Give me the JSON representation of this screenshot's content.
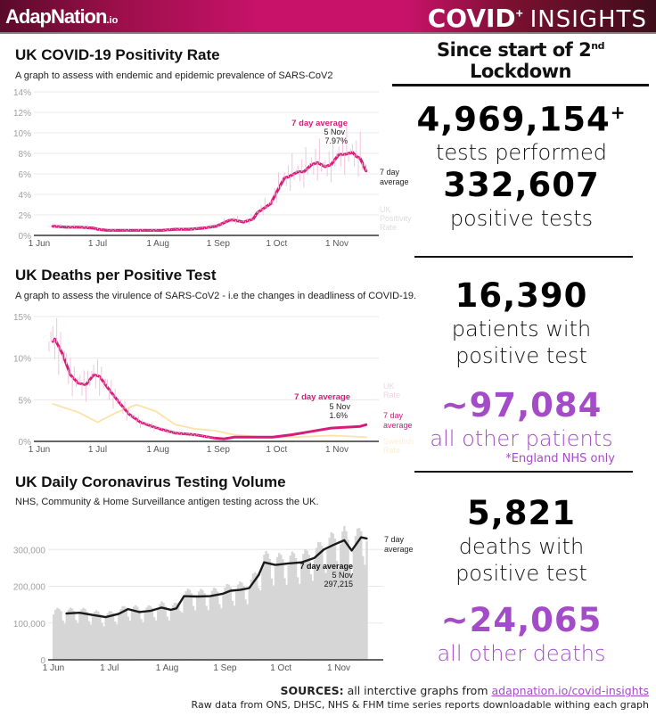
{
  "header": {
    "brand": "AdapNation",
    "brand_suffix": ".io",
    "title_bold": "COVID",
    "title_sup": "+",
    "title_light": "INSIGHTS",
    "colors": {
      "brand_pink": "#c8126a",
      "accent_purple": "#a44cc8",
      "line_pink": "#d81b7a"
    }
  },
  "stats": {
    "heading": "Since start of 2",
    "heading_sup": "nd",
    "heading_tail": " Lockdown",
    "items": [
      {
        "value": "4,969,154",
        "sup": "+",
        "label": "tests performed"
      },
      {
        "value": "332,607",
        "label": "positive tests"
      },
      {
        "value": "16,390",
        "label_line1": "patients with",
        "label_line2": "positive test"
      },
      {
        "value": "~97,084",
        "label": "all other patients",
        "note": "*England NHS only"
      },
      {
        "value": "5,821",
        "label_line1": "deaths with",
        "label_line2": "positive test"
      },
      {
        "value": "~24,065",
        "label": "all other deaths"
      }
    ]
  },
  "sources": {
    "label": "SOURCES:",
    "text": " all interctive graphs from ",
    "link": "adapnation.io/covid-insights",
    "raw": "Raw data from ONS, DHSC, NHS & FHM time series reports downloadable withing each graph"
  },
  "chart_data": [
    {
      "type": "line",
      "title": "UK COVID-19 Positivity Rate",
      "subtitle": "A graph to assess with endemic and epidemic prevalence of SARS-CoV2",
      "xlabel": "",
      "ylabel": "",
      "x_ticks": [
        "1 Jun",
        "1 Jul",
        "1 Aug",
        "1 Sep",
        "1 Oct",
        "1 Nov"
      ],
      "y_ticks": [
        "0%",
        "2%",
        "4%",
        "6%",
        "8%",
        "10%",
        "12%",
        "14%"
      ],
      "ylim": [
        0,
        14
      ],
      "grid": true,
      "x_days_range": [
        0,
        168
      ],
      "series": [
        {
          "name": "7 day average",
          "days": [
            7,
            14,
            21,
            28,
            30,
            35,
            42,
            49,
            56,
            63,
            70,
            77,
            84,
            91,
            98,
            100,
            105,
            110,
            112,
            119,
            122,
            126,
            128,
            133,
            136,
            140,
            143,
            147,
            150,
            154,
            157,
            161,
            163,
            165,
            168
          ],
          "values": [
            0.9,
            0.8,
            0.8,
            0.7,
            0.6,
            0.5,
            0.5,
            0.5,
            0.5,
            0.5,
            0.6,
            0.6,
            0.7,
            0.9,
            1.5,
            1.5,
            1.3,
            1.6,
            2.2,
            3.1,
            4.2,
            5.6,
            5.7,
            6.2,
            6.2,
            6.9,
            7.1,
            6.7,
            6.9,
            7.9,
            7.9,
            8.1,
            7.7,
            7.5,
            6.3
          ]
        },
        {
          "name": "UK Positivity Rate",
          "values_note": "daily values, faint"
        }
      ],
      "annotations": [
        {
          "label": "7 day average",
          "date": "5 Nov",
          "value": "7.97%"
        },
        {
          "label": "7 day average",
          "position": "line-end"
        },
        {
          "label": "UK Positivity Rate",
          "position": "line-end"
        }
      ]
    },
    {
      "type": "line",
      "title": "UK Deaths per Positive Test",
      "subtitle": "A graph to assess the virulence of SARS-CoV2 - i.e the changes in deadliness of COVID-19.",
      "x_ticks": [
        "1 Jun",
        "1 Jul",
        "1 Aug",
        "1 Sep",
        "1 Oct",
        "1 Nov"
      ],
      "y_ticks": [
        "0%",
        "5%",
        "10%",
        "15%"
      ],
      "ylim": [
        0,
        15
      ],
      "grid": true,
      "series": [
        {
          "name": "UK 7 day average",
          "days": [
            7,
            8,
            12,
            16,
            20,
            24,
            28,
            31,
            35,
            40,
            46,
            52,
            58,
            62,
            70,
            80,
            90,
            95,
            100,
            110,
            120,
            130,
            140,
            150,
            158,
            165,
            168
          ],
          "values": [
            12.0,
            12.3,
            10.5,
            8.0,
            7.0,
            6.8,
            8.0,
            7.8,
            6.5,
            5.0,
            3.3,
            2.3,
            1.8,
            1.5,
            1.0,
            0.8,
            0.4,
            0.3,
            0.5,
            0.5,
            0.5,
            0.8,
            1.2,
            1.6,
            1.7,
            1.8,
            2.0
          ]
        },
        {
          "name": "Swedish Rate",
          "days": [
            7,
            20,
            30,
            40,
            50,
            60,
            70,
            80,
            90,
            100,
            110,
            120,
            130,
            140,
            150,
            160,
            168
          ],
          "values": [
            4.5,
            3.5,
            2.3,
            3.5,
            4.4,
            3.6,
            2.0,
            1.5,
            1.3,
            0.8,
            0.6,
            0.5,
            0.5,
            0.6,
            0.7,
            0.6,
            0.5
          ]
        }
      ],
      "annotations": [
        {
          "label": "7 day average",
          "date": "5 Nov",
          "value": "1.6%"
        },
        {
          "label": "UK Rate",
          "position": "line-end"
        },
        {
          "label": "7 day average",
          "position": "line-end"
        },
        {
          "label": "Swedish Rate",
          "position": "line-end"
        }
      ]
    },
    {
      "type": "bar",
      "title": "UK Daily Coronavirus Testing Volume",
      "subtitle": "NHS, Community & Home Surveillance antigen testing across the UK.",
      "x_ticks": [
        "1 Jun",
        "1 Jul",
        "1 Aug",
        "1 Sep",
        "1 Oct",
        "1 Nov"
      ],
      "y_ticks": [
        "0",
        "100,000",
        "200,000",
        "300,000"
      ],
      "ylim": [
        0,
        400000
      ],
      "grid": true,
      "series": [
        {
          "name": "7 day average",
          "days": [
            7,
            14,
            21,
            28,
            35,
            40,
            46,
            52,
            58,
            63,
            66,
            70,
            77,
            84,
            91,
            95,
            100,
            105,
            110,
            113,
            119,
            126,
            133,
            140,
            145,
            150,
            156,
            160,
            165,
            168
          ],
          "values": [
            126000,
            128000,
            122000,
            116000,
            125000,
            138000,
            130000,
            133000,
            142000,
            136000,
            140000,
            173000,
            172000,
            173000,
            180000,
            188000,
            190000,
            195000,
            230000,
            265000,
            258000,
            262000,
            265000,
            277000,
            300000,
            312000,
            325000,
            297215,
            333000,
            330000
          ]
        }
      ],
      "bars_note": "daily test volume bars (grey), weekly oscillation around 7 day average",
      "annotations": [
        {
          "label": "7 day average",
          "date": "5 Nov",
          "value": "297,215"
        },
        {
          "label": "7 day average",
          "position": "line-end"
        }
      ]
    }
  ]
}
